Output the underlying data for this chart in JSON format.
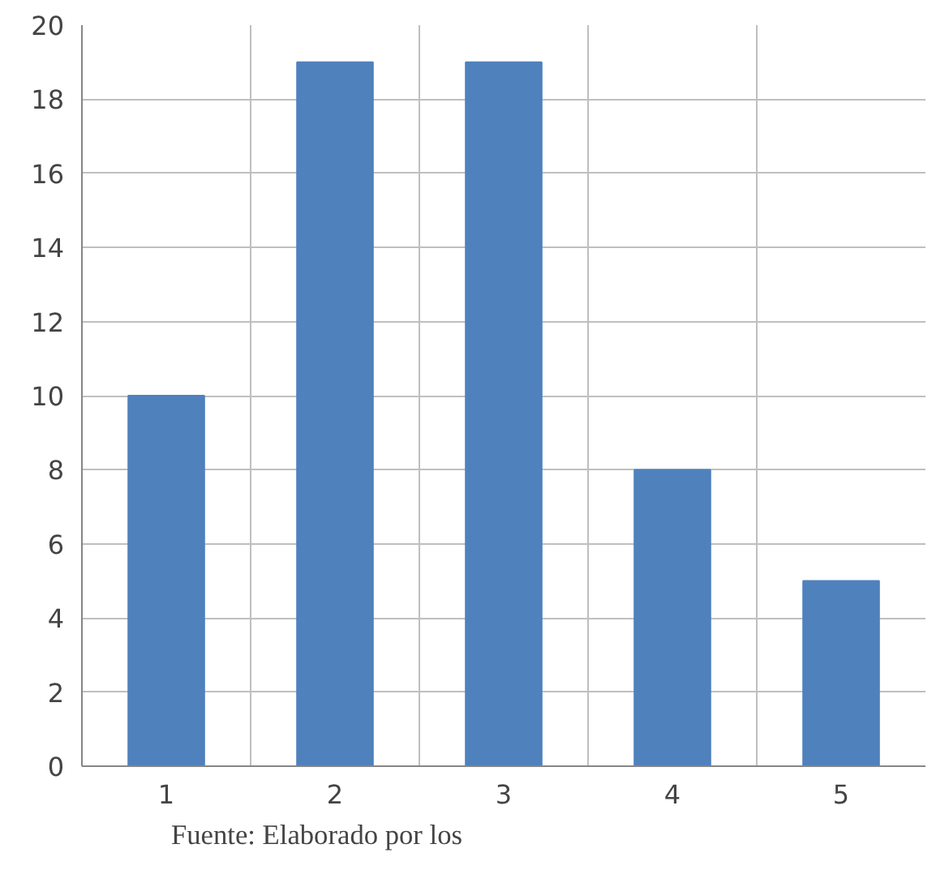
{
  "chart_data": {
    "type": "bar",
    "categories": [
      "1",
      "2",
      "3",
      "4",
      "5"
    ],
    "values": [
      10,
      19,
      19,
      8,
      5
    ],
    "color": "#4f81bd",
    "ylim": [
      0,
      20
    ],
    "yticks": [
      0,
      2,
      4,
      6,
      8,
      10,
      12,
      14,
      16,
      18,
      20
    ],
    "grid": true,
    "annotations": [
      "Fuente:          Elaborado  por  los"
    ]
  }
}
